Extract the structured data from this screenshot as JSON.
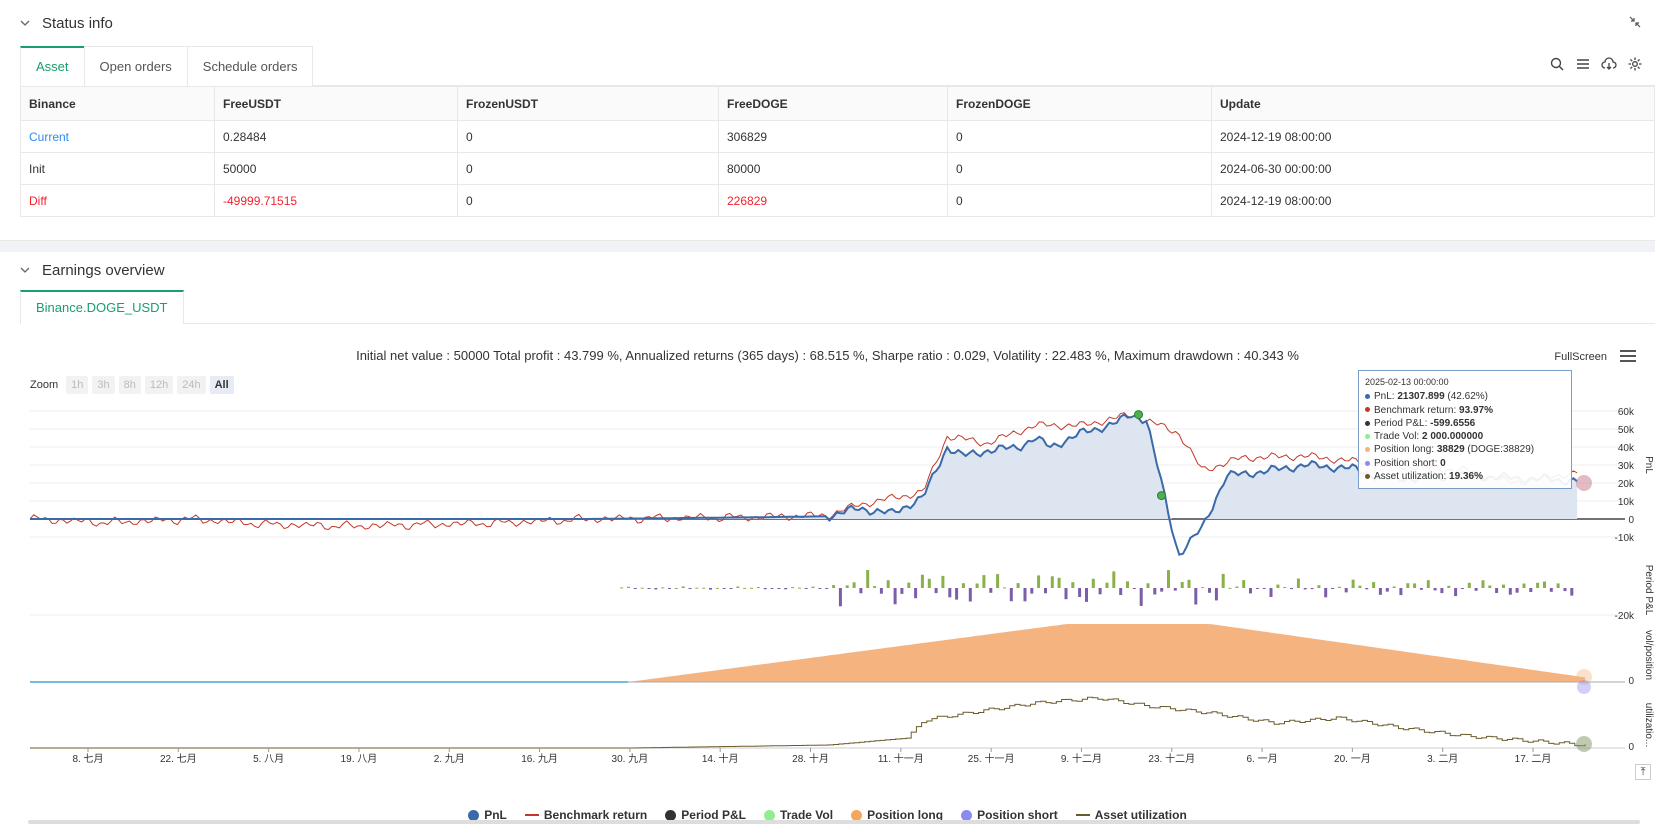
{
  "status": {
    "title": "Status info",
    "tabs": [
      "Asset",
      "Open orders",
      "Schedule orders"
    ],
    "table": {
      "headers": [
        "Binance",
        "FreeUSDT",
        "FrozenUSDT",
        "FreeDOGE",
        "FrozenDOGE",
        "Update"
      ],
      "rows": [
        [
          "Current",
          "0.28484",
          "0",
          "306829",
          "0",
          "2024-12-19 08:00:00"
        ],
        [
          "Init",
          "50000",
          "0",
          "80000",
          "0",
          "2024-06-30 00:00:00"
        ],
        [
          "Diff",
          "-49999.71515",
          "0",
          "226829",
          "0",
          "2024-12-19 08:00:00"
        ]
      ]
    }
  },
  "earnings": {
    "title": "Earnings overview",
    "tab": "Binance.DOGE_USDT",
    "stats": "Initial net value : 50000 Total profit : 43.799 %, Annualized returns (365 days) : 68.515 %, Sharpe ratio : 0.029, Volatility : 22.483 %, Maximum drawdown : 40.343 %",
    "fullscreen": "FullScreen",
    "zoom_label": "Zoom",
    "zoom_options": [
      "1h",
      "3h",
      "8h",
      "12h",
      "24h",
      "All"
    ],
    "tooltip": {
      "date": "2025-02-13 00:00:00",
      "pnl_label": "PnL: ",
      "pnl_value": "21307.899",
      "pnl_pct": " (42.62%)",
      "bench_label": "Benchmark return: ",
      "bench_value": "93.97%",
      "period_label": "Period P&L: ",
      "period_value": "-599.6556",
      "vol_label": "Trade Vol: ",
      "vol_value": "2 000.000000",
      "long_label": "Position long: ",
      "long_value": "38829",
      "long_extra": " (DOGE:38829)",
      "short_label": "Position short: ",
      "short_value": "0",
      "util_label": "Asset utilization: ",
      "util_value": "19.36%"
    },
    "legend": [
      "PnL",
      "Benchmark return",
      "Period P&L",
      "Trade Vol",
      "Position long",
      "Position short",
      "Asset utilization"
    ],
    "colors": {
      "pnl": "#3a6aa8",
      "benchmark": "#c0392b",
      "period_pos": "#8bb04a",
      "period_neg": "#7b5ea7",
      "position_long": "#f5b380",
      "position_short": "#8a8af0",
      "util": "#6b5a2a",
      "trade_vol": "#90ee90"
    }
  },
  "chart_data": {
    "type": "line",
    "x_ticks": [
      "8. 七月",
      "22. 七月",
      "5. 八月",
      "19. 八月",
      "2. 九月",
      "16. 九月",
      "30. 九月",
      "14. 十月",
      "28. 十月",
      "11. 十一月",
      "25. 十一月",
      "9. 十二月",
      "23. 十二月",
      "6. 一月",
      "20. 一月",
      "3. 二月",
      "17. 二月"
    ],
    "pnl_axis": {
      "label": "PnL",
      "ticks": [
        "60k",
        "50k",
        "40k",
        "30k",
        "20k",
        "10k",
        "0",
        "-10k"
      ],
      "ylim": [
        -10000,
        65000
      ]
    },
    "period_axis": {
      "label": "Period P&L",
      "ticks": [
        "-20k"
      ]
    },
    "position_axis": {
      "label": "vol/position",
      "ticks": [
        "0"
      ]
    },
    "util_axis": {
      "label": "utilizatio...",
      "ticks": [
        "0"
      ]
    },
    "series": [
      {
        "name": "PnL",
        "points": [
          [
            0,
            0
          ],
          [
            0.35,
            0
          ],
          [
            0.46,
            1000
          ],
          [
            0.5,
            1500
          ],
          [
            0.52,
            6000
          ],
          [
            0.54,
            3000
          ],
          [
            0.56,
            12000
          ],
          [
            0.575,
            40000
          ],
          [
            0.585,
            35000
          ],
          [
            0.6,
            38000
          ],
          [
            0.62,
            40000
          ],
          [
            0.63,
            45000
          ],
          [
            0.64,
            40000
          ],
          [
            0.66,
            48000
          ],
          [
            0.68,
            53000
          ],
          [
            0.69,
            58000
          ],
          [
            0.7,
            55000
          ],
          [
            0.72,
            -20000
          ],
          [
            0.735,
            -5000
          ],
          [
            0.75,
            24000
          ],
          [
            0.77,
            26000
          ],
          [
            0.8,
            30000
          ],
          [
            0.83,
            28000
          ],
          [
            0.85,
            22000
          ],
          [
            0.9,
            24000
          ],
          [
            0.95,
            22000
          ],
          [
            0.97,
            21307
          ]
        ]
      },
      {
        "name": "Benchmark return",
        "points": [
          [
            0,
            0
          ],
          [
            0.05,
            -2000
          ],
          [
            0.1,
            0
          ],
          [
            0.15,
            -3000
          ],
          [
            0.2,
            -4000
          ],
          [
            0.3,
            -2000
          ],
          [
            0.35,
            0
          ],
          [
            0.45,
            1000
          ],
          [
            0.5,
            2000
          ],
          [
            0.52,
            8000
          ],
          [
            0.56,
            15000
          ],
          [
            0.575,
            46000
          ],
          [
            0.6,
            42000
          ],
          [
            0.63,
            52000
          ],
          [
            0.66,
            52000
          ],
          [
            0.69,
            58000
          ],
          [
            0.72,
            48000
          ],
          [
            0.735,
            27000
          ],
          [
            0.76,
            34000
          ],
          [
            0.8,
            35000
          ],
          [
            0.85,
            30000
          ],
          [
            0.9,
            27000
          ],
          [
            0.93,
            20000
          ],
          [
            0.97,
            26000
          ]
        ]
      }
    ]
  }
}
